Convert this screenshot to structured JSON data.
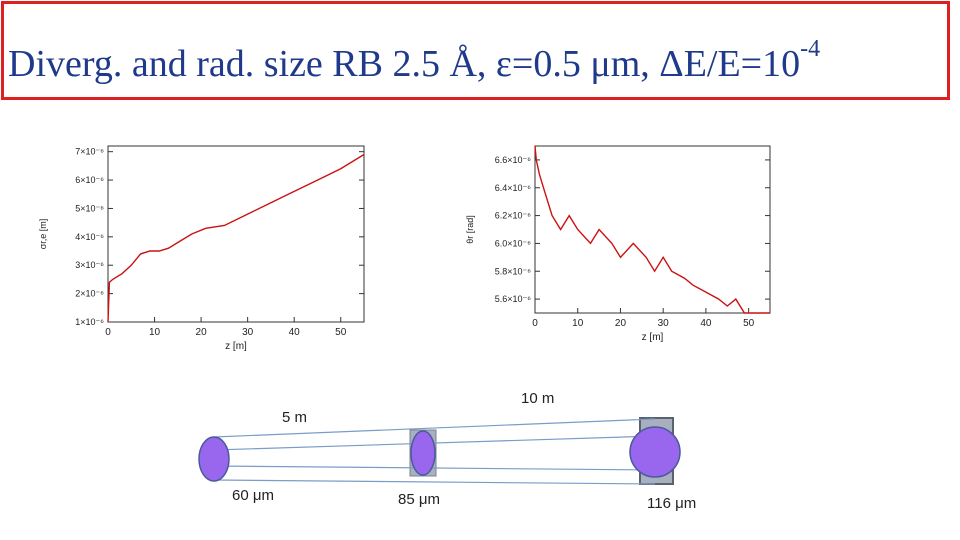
{
  "title": {
    "text": "Diverg. and rad. size RB 2.5 Å, ε=0.5 μm, ΔE/E=10",
    "exponent": "-4"
  },
  "chart_data": [
    {
      "type": "line",
      "xlabel": "z [m]",
      "ylabel": "σr,e [m]",
      "xlim": [
        0,
        55
      ],
      "ylim": [
        1e-06,
        7.2e-06
      ],
      "x_ticks": [
        "0",
        "10",
        "20",
        "30",
        "40",
        "50"
      ],
      "y_ticks": [
        "1×10⁻⁶",
        "2×10⁻⁶",
        "3×10⁻⁶",
        "4×10⁻⁶",
        "5×10⁻⁶",
        "6×10⁻⁶",
        "7×10⁻⁶"
      ],
      "color": "#cc1111",
      "x": [
        0,
        0.3,
        1,
        3,
        5,
        7,
        9,
        11,
        13,
        15,
        18,
        21,
        25,
        30,
        35,
        40,
        45,
        50,
        55
      ],
      "y": [
        3e-07,
        2.4e-06,
        2.5e-06,
        2.7e-06,
        3e-06,
        3.4e-06,
        3.5e-06,
        3.5e-06,
        3.6e-06,
        3.8e-06,
        4.1e-06,
        4.3e-06,
        4.4e-06,
        4.8e-06,
        5.2e-06,
        5.6e-06,
        6e-06,
        6.4e-06,
        6.9e-06
      ]
    },
    {
      "type": "line",
      "xlabel": "z [m]",
      "ylabel": "θr [rad]",
      "xlim": [
        0,
        55
      ],
      "ylim": [
        5.5e-06,
        6.7e-06
      ],
      "x_ticks": [
        "0",
        "10",
        "20",
        "30",
        "40",
        "50"
      ],
      "y_ticks": [
        "5.6×10⁻⁶",
        "5.8×10⁻⁶",
        "6.0×10⁻⁶",
        "6.2×10⁻⁶",
        "6.4×10⁻⁶",
        "6.6×10⁻⁶"
      ],
      "color": "#cc1111",
      "x": [
        0,
        0.3,
        1,
        2,
        4,
        6,
        8,
        10,
        13,
        15,
        18,
        20,
        23,
        26,
        28,
        30,
        32,
        35,
        37,
        40,
        43,
        45,
        47,
        49,
        50,
        52,
        55
      ],
      "y": [
        6.7e-06,
        6.6e-06,
        6.5e-06,
        6.4e-06,
        6.2e-06,
        6.1e-06,
        6.2e-06,
        6.1e-06,
        6e-06,
        6.1e-06,
        6e-06,
        5.9e-06,
        6e-06,
        5.9e-06,
        5.8e-06,
        5.9e-06,
        5.8e-06,
        5.75e-06,
        5.7e-06,
        5.65e-06,
        5.6e-06,
        5.55e-06,
        5.6e-06,
        5.5e-06,
        5.48e-06,
        5.5e-06,
        5.5e-06
      ]
    }
  ],
  "diagram": {
    "label_5m": "5 m",
    "label_10m": "10 m",
    "size_1": "60 μm",
    "size_2": "85 μm",
    "size_3": "116 μm",
    "beam_color": "#9966ee",
    "aperture_color": "#a8b0c0"
  }
}
